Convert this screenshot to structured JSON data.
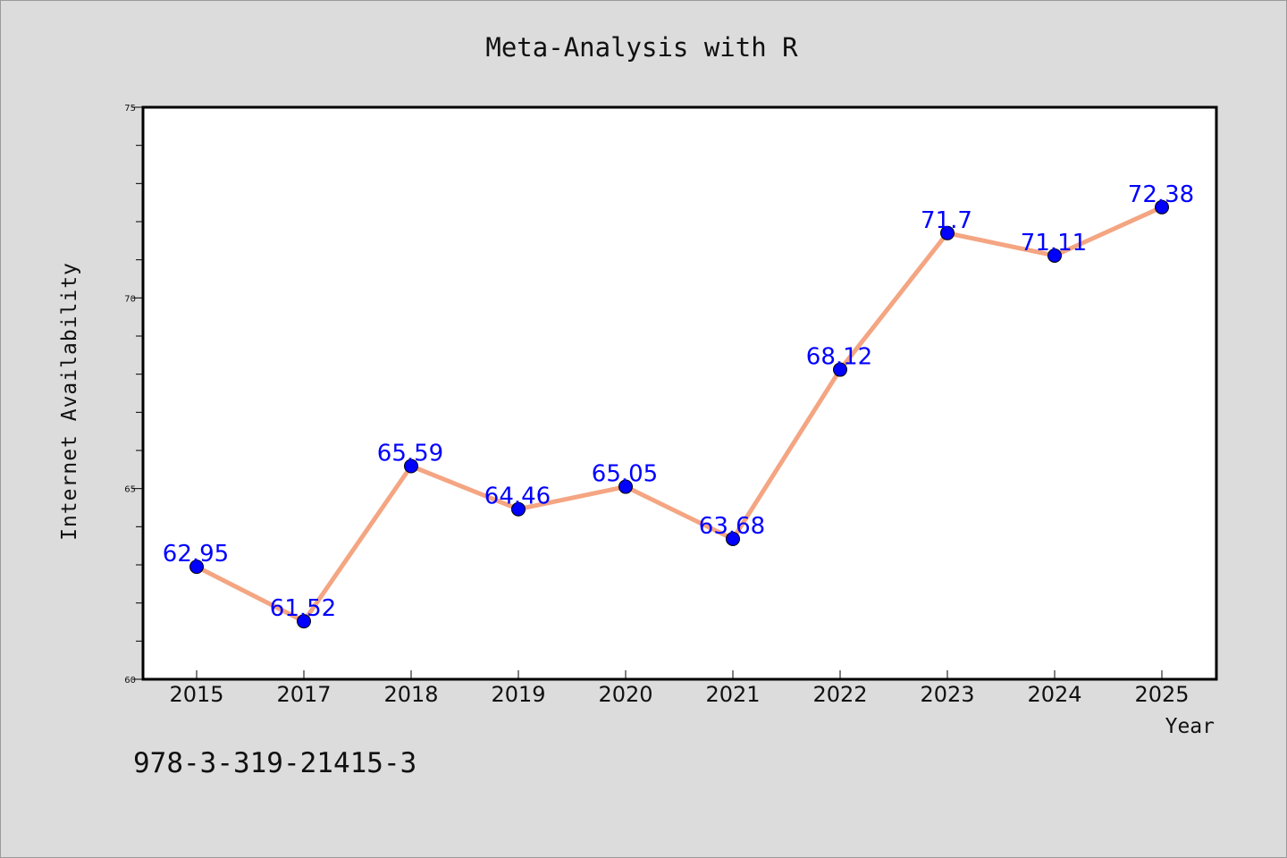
{
  "chart_data": {
    "type": "line",
    "title": "Meta-Analysis with R",
    "xlabel": "Year",
    "ylabel": "Internet Availability",
    "categories": [
      "2015",
      "2017",
      "2018",
      "2019",
      "2020",
      "2021",
      "2022",
      "2023",
      "2024",
      "2025"
    ],
    "series": [
      {
        "values": [
          62.95,
          61.52,
          65.59,
          64.46,
          65.05,
          63.68,
          68.12,
          71.7,
          71.11,
          72.38
        ],
        "data_labels": [
          "62.95",
          "61.52",
          "65.59",
          "64.46",
          "65.05",
          "63.68",
          "68.12",
          "71.7",
          "71.11",
          "72.38"
        ],
        "line_color": "#f4a582",
        "marker_color": "#0000ff"
      }
    ],
    "ylim": [
      60,
      75
    ],
    "yticks": [
      60,
      65,
      70,
      75
    ],
    "ytick_labels": [
      "60",
      "65",
      "70",
      "75"
    ],
    "grid": false,
    "legend": "none",
    "background_color": "#dcdcdc",
    "plot_background_color": "#ffffff",
    "label_color": "#0000ff"
  },
  "footer": {
    "text": "978-3-319-21415-3"
  }
}
